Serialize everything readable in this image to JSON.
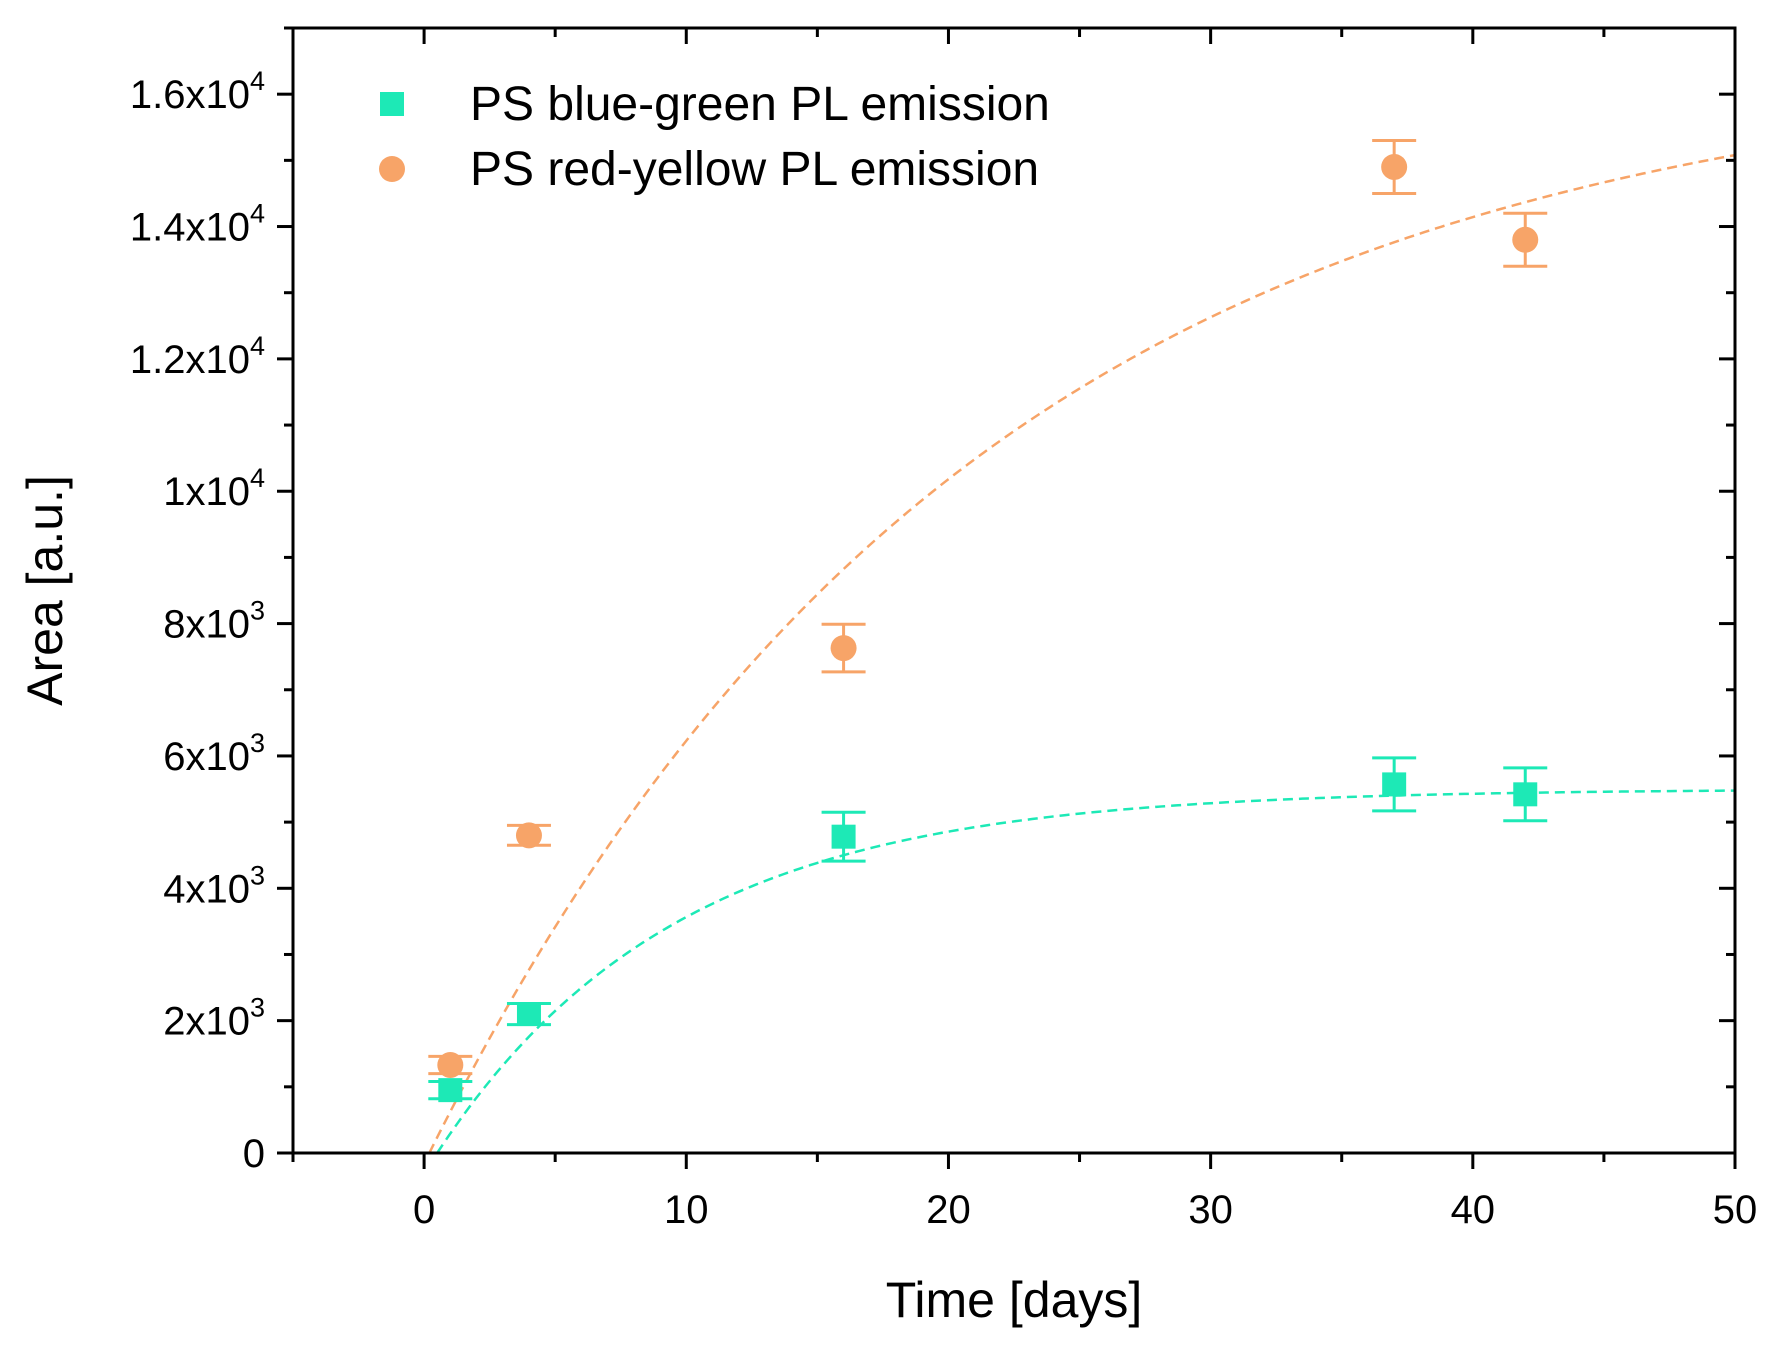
{
  "chart_data": {
    "type": "scatter",
    "title": "",
    "xlabel": "Time [days]",
    "ylabel": "Area [a.u.]",
    "xlim": [
      -5,
      50
    ],
    "ylim": [
      0,
      17000
    ],
    "x_ticks": [
      0,
      10,
      20,
      30,
      40,
      50
    ],
    "x_tick_labels": [
      "0",
      "10",
      "20",
      "30",
      "40",
      "50"
    ],
    "y_ticks": [
      0,
      2000,
      4000,
      6000,
      8000,
      10000,
      12000,
      14000,
      16000
    ],
    "y_tick_labels": [
      {
        "mantissa": "0",
        "exp": ""
      },
      {
        "mantissa": "2x10",
        "exp": "3"
      },
      {
        "mantissa": "4x10",
        "exp": "3"
      },
      {
        "mantissa": "6x10",
        "exp": "3"
      },
      {
        "mantissa": "8x10",
        "exp": "3"
      },
      {
        "mantissa": "1x10",
        "exp": "4"
      },
      {
        "mantissa": "1.2x10",
        "exp": "4"
      },
      {
        "mantissa": "1.4x10",
        "exp": "4"
      },
      {
        "mantissa": "1.6x10",
        "exp": "4"
      }
    ],
    "grid": false,
    "legend_position": "top-left",
    "series": [
      {
        "name": "PS blue-green PL emission",
        "marker": "square",
        "color": "#1de9b6",
        "x": [
          1,
          4,
          16,
          37,
          42
        ],
        "y": [
          950,
          2100,
          4780,
          5570,
          5420
        ],
        "yerr": [
          130,
          160,
          370,
          400,
          400
        ],
        "fit": {
          "type": "exp_rise",
          "A": 5500,
          "k": 0.11,
          "x0": 0.5,
          "x_end": 50
        }
      },
      {
        "name": "PS red-yellow PL emission",
        "marker": "circle",
        "color": "#f7a468",
        "x": [
          1,
          4,
          16,
          37,
          42
        ],
        "y": [
          1330,
          4800,
          7630,
          14900,
          13800
        ],
        "yerr": [
          130,
          150,
          360,
          400,
          400
        ],
        "fit": {
          "type": "exp_rise",
          "A": 16600,
          "k": 0.048,
          "x0": 0.2,
          "x_end": 50
        }
      }
    ]
  }
}
